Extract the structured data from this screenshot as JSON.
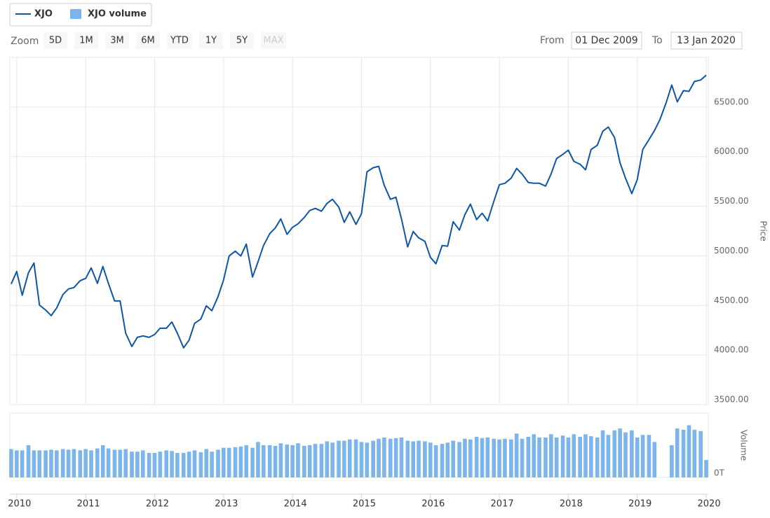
{
  "ui": {
    "zoom_label": "Zoom",
    "zoom_buttons": [
      "5D",
      "1M",
      "3M",
      "6M",
      "YTD",
      "1Y",
      "5Y",
      "MAX"
    ],
    "disabled_button": "MAX",
    "from_label": "From",
    "from_date": "01 Dec 2009",
    "to_label": "To",
    "to_date": "13 Jan 2020"
  },
  "chart_data": {
    "type": "stock",
    "x": [
      2009.92,
      2010.0,
      2010.08,
      2010.17,
      2010.25,
      2010.33,
      2010.42,
      2010.5,
      2010.58,
      2010.67,
      2010.75,
      2010.83,
      2010.92,
      2011.0,
      2011.08,
      2011.17,
      2011.25,
      2011.33,
      2011.42,
      2011.5,
      2011.58,
      2011.67,
      2011.75,
      2011.83,
      2011.92,
      2012.0,
      2012.08,
      2012.17,
      2012.25,
      2012.33,
      2012.42,
      2012.5,
      2012.58,
      2012.67,
      2012.75,
      2012.83,
      2012.92,
      2013.0,
      2013.08,
      2013.17,
      2013.25,
      2013.33,
      2013.42,
      2013.5,
      2013.58,
      2013.67,
      2013.75,
      2013.83,
      2013.92,
      2014.0,
      2014.08,
      2014.17,
      2014.25,
      2014.33,
      2014.42,
      2014.5,
      2014.58,
      2014.67,
      2014.75,
      2014.83,
      2014.92,
      2015.0,
      2015.08,
      2015.17,
      2015.25,
      2015.33,
      2015.42,
      2015.5,
      2015.58,
      2015.67,
      2015.75,
      2015.83,
      2015.92,
      2016.0,
      2016.08,
      2016.17,
      2016.25,
      2016.33,
      2016.42,
      2016.5,
      2016.58,
      2016.67,
      2016.75,
      2016.83,
      2016.92,
      2017.0,
      2017.08,
      2017.17,
      2017.25,
      2017.33,
      2017.42,
      2017.5,
      2017.58,
      2017.67,
      2017.75,
      2017.83,
      2017.92,
      2018.0,
      2018.08,
      2018.17,
      2018.25,
      2018.33,
      2018.42,
      2018.5,
      2018.58,
      2018.67,
      2018.75,
      2018.83,
      2018.92,
      2019.0,
      2019.08,
      2019.17,
      2019.25,
      2019.33,
      2019.42,
      2019.5,
      2019.58,
      2019.67,
      2019.75,
      2019.83,
      2019.92,
      2020.0
    ],
    "series": [
      {
        "name": "XJO",
        "color": "#0d56a6",
        "axis": "y",
        "values": [
          4716,
          4842,
          4602,
          4828,
          4927,
          4503,
          4453,
          4397,
          4475,
          4609,
          4666,
          4680,
          4750,
          4772,
          4878,
          4722,
          4892,
          4722,
          4545,
          4545,
          4220,
          4086,
          4178,
          4192,
          4178,
          4206,
          4270,
          4270,
          4333,
          4220,
          4072,
          4150,
          4319,
          4362,
          4496,
          4446,
          4588,
          4757,
          4998,
          5047,
          4998,
          5118,
          4786,
          4941,
          5104,
          5224,
          5280,
          5372,
          5217,
          5287,
          5323,
          5386,
          5457,
          5478,
          5450,
          5528,
          5570,
          5492,
          5337,
          5443,
          5316,
          5422,
          5846,
          5888,
          5902,
          5711,
          5570,
          5591,
          5372,
          5090,
          5245,
          5181,
          5146,
          4984,
          4920,
          5104,
          5097,
          5344,
          5259,
          5415,
          5521,
          5365,
          5429,
          5351,
          5549,
          5717,
          5731,
          5782,
          5881,
          5824,
          5738,
          5731,
          5731,
          5703,
          5824,
          5980,
          6022,
          6065,
          5952,
          5923,
          5867,
          6072,
          6114,
          6256,
          6298,
          6192,
          5938,
          5782,
          5627,
          5768,
          6072,
          6171,
          6263,
          6376,
          6545,
          6722,
          6552,
          6665,
          6658,
          6757,
          6772,
          6821
        ]
      },
      {
        "name": "XJO volume",
        "color": "#7cb5ec",
        "axis": "y2",
        "values": [
          44,
          42,
          42,
          50,
          42,
          42,
          42,
          43,
          42,
          44,
          43,
          44,
          42,
          44,
          42,
          45,
          50,
          45,
          43,
          43,
          44,
          40,
          40,
          42,
          38,
          38,
          40,
          42,
          41,
          38,
          38,
          40,
          42,
          39,
          44,
          40,
          43,
          46,
          46,
          47,
          48,
          50,
          46,
          55,
          50,
          50,
          49,
          53,
          51,
          50,
          53,
          49,
          50,
          52,
          52,
          56,
          54,
          57,
          57,
          59,
          59,
          55,
          54,
          57,
          60,
          62,
          60,
          61,
          62,
          57,
          56,
          57,
          56,
          54,
          50,
          52,
          54,
          57,
          55,
          60,
          59,
          63,
          61,
          62,
          60,
          59,
          60,
          59,
          68,
          60,
          63,
          67,
          62,
          62,
          67,
          62,
          65,
          62,
          67,
          63,
          67,
          64,
          62,
          73,
          66,
          73,
          76,
          70,
          73,
          62,
          66,
          66,
          55,
          null,
          null,
          50,
          76,
          74,
          81,
          74,
          72,
          27
        ]
      }
    ],
    "xlim": [
      2009.9,
      2020.03
    ],
    "xticks": [
      2010,
      2011,
      2012,
      2013,
      2014,
      2015,
      2016,
      2017,
      2018,
      2019,
      2020
    ],
    "ylim": [
      3500,
      7000
    ],
    "yticks": [
      {
        "value": 3500,
        "label": "3500.00"
      },
      {
        "value": 4000,
        "label": "4000.00"
      },
      {
        "value": 4500,
        "label": "4500.00"
      },
      {
        "value": 5000,
        "label": "5000.00"
      },
      {
        "value": 5500,
        "label": "5500.00"
      },
      {
        "value": 6000,
        "label": "6000.00"
      },
      {
        "value": 6500,
        "label": "6500.00"
      }
    ],
    "y_label": "Price",
    "y2lim": [
      0,
      100
    ],
    "y2ticks": [
      {
        "value": 0,
        "label": "0T"
      }
    ],
    "y2_label": "Volume",
    "grid": true
  }
}
